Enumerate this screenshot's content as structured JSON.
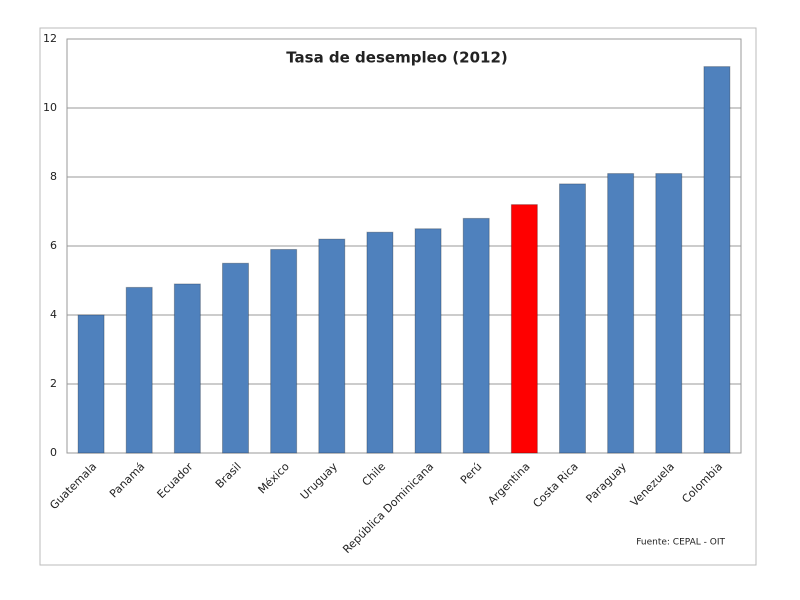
{
  "chart_data": {
    "type": "bar",
    "title": "Tasa de desempleo (2012)",
    "categories": [
      "Guatemala",
      "Panamá",
      "Ecuador",
      "Brasil",
      "México",
      "Uruguay",
      "Chile",
      "República Dominicana",
      "Perú",
      "Argentina",
      "Costa Rica",
      "Paraguay",
      "Venezuela",
      "Colombia"
    ],
    "values": [
      4.0,
      4.8,
      4.9,
      5.5,
      5.9,
      6.2,
      6.4,
      6.5,
      6.8,
      7.2,
      7.8,
      8.1,
      8.1,
      11.2
    ],
    "colors": [
      "#4f81bd",
      "#4f81bd",
      "#4f81bd",
      "#4f81bd",
      "#4f81bd",
      "#4f81bd",
      "#4f81bd",
      "#4f81bd",
      "#4f81bd",
      "#ff0000",
      "#4f81bd",
      "#4f81bd",
      "#4f81bd",
      "#4f81bd"
    ],
    "ylim": [
      0,
      12
    ],
    "yticks": [
      0,
      2,
      4,
      6,
      8,
      10,
      12
    ],
    "grid": true,
    "source": "Fuente: CEPAL - OIT"
  }
}
